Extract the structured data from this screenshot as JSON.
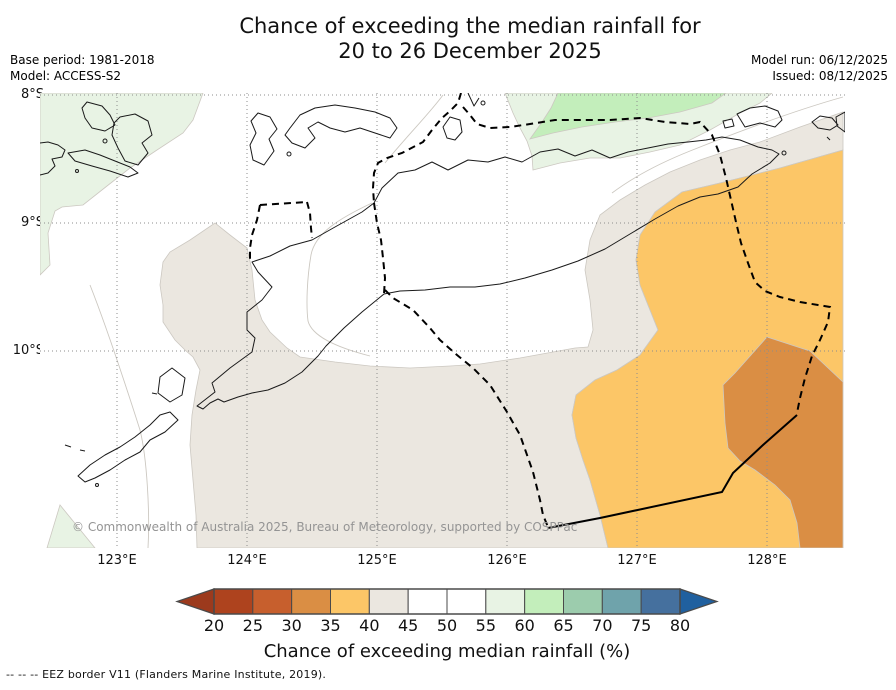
{
  "title": {
    "line1": "Chance of exceeding the median rainfall for",
    "line2": "20 to 26 December 2025"
  },
  "meta": {
    "base_period": "Base period: 1981-2018",
    "model": "Model: ACCESS-S2",
    "model_run": "Model run: 06/12/2025",
    "issued": "Issued: 08/12/2025"
  },
  "map": {
    "copyright": "© Commonwealth of Australia 2025, Bureau of Meteorology, supported by COSPPac",
    "y_axis": [
      "8°S",
      "9°S",
      "10°S"
    ],
    "x_axis": [
      "123°E",
      "124°E",
      "125°E",
      "126°E",
      "127°E",
      "128°E"
    ],
    "band_colors": {
      "30-35": "#da8e44",
      "35-40": "#fcc667",
      "40-45": "#ebe7e0",
      "45-55": "#ffffff",
      "55-60": "#e8f3e4",
      "60-65": "#c3eebb"
    }
  },
  "chart_data": {
    "type": "heatmap",
    "title": "Chance of exceeding the median rainfall for 20 to 26 December 2025",
    "region": "Timor area",
    "lat_ticks": [
      "8°S",
      "9°S",
      "10°S"
    ],
    "lon_ticks": [
      "123°E",
      "124°E",
      "125°E",
      "126°E",
      "127°E",
      "128°E"
    ],
    "bands": [
      {
        "value": "30-35%",
        "color": "#da8e44",
        "where": "far south-east corner of map"
      },
      {
        "value": "35-40%",
        "color": "#fcc667",
        "where": "large area in east and south-east"
      },
      {
        "value": "40-45%",
        "color": "#ebe7e0",
        "where": "broad band across south and centre-east, plus patch near 124°E 9.3°S"
      },
      {
        "value": "45-55%",
        "color": "#ffffff",
        "where": "central and western seas around Timor"
      },
      {
        "value": "55-60%",
        "color": "#e8f3e4",
        "where": "north-west corner, north-central wedge, small south-west corner wedge"
      },
      {
        "value": "60-65%",
        "color": "#c3eebb",
        "where": "along northern edge near 126°-127°E"
      }
    ],
    "legend": {
      "label": "Chance of exceeding median rainfall (%)",
      "ticks": [
        20,
        25,
        30,
        35,
        40,
        45,
        50,
        55,
        60,
        65,
        70,
        75,
        80
      ]
    }
  },
  "colorbar": {
    "ticks": [
      "20",
      "25",
      "30",
      "35",
      "40",
      "45",
      "50",
      "55",
      "60",
      "65",
      "70",
      "75",
      "80"
    ],
    "cell_colors": [
      "#ae431e",
      "#c75f2d",
      "#da8e44",
      "#fcc667",
      "#ebe7e0",
      "#ffffff",
      "#ffffff",
      "#e8f3e4",
      "#c3eebb",
      "#9cccad",
      "#6fa3ab",
      "#45709e"
    ],
    "arrow_left_color": "#9c3a1d",
    "arrow_right_color": "#20609f",
    "label": "Chance of exceeding median rainfall (%)"
  },
  "footnote": {
    "symbol": "--  --  --",
    "text": "EEZ border V11 (Flanders Marine Institute, 2019)."
  }
}
